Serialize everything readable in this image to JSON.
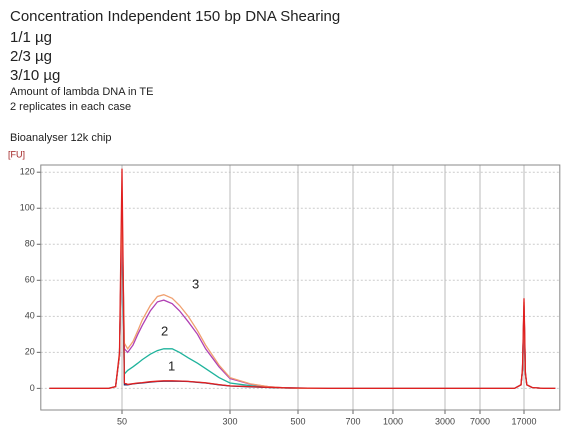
{
  "chart_data": {
    "type": "line",
    "title": "Concentration Independent 150 bp DNA Shearing",
    "subtitles": [
      "1/1 µg",
      "2/3 µg",
      "3/10 µg"
    ],
    "notes": [
      "Amount of lambda DNA in TE",
      "2 replicates in each case"
    ],
    "chip": "Bioanalyser 12k chip",
    "y_label": "[FU]",
    "annotations": [
      "3",
      "2",
      "1"
    ],
    "x": [
      15,
      30,
      40,
      45,
      48,
      50,
      52,
      55,
      60,
      65,
      70,
      80,
      90,
      100,
      115,
      130,
      150,
      175,
      200,
      250,
      300,
      350,
      400,
      450,
      500,
      600,
      800,
      1000,
      2000,
      5000,
      10000,
      14000,
      16000,
      16500,
      17000,
      17500,
      18000,
      20000,
      25000,
      32000
    ],
    "series": [
      {
        "color": "#2b2f6e",
        "values": [
          0,
          0,
          0,
          1,
          18,
          98,
          2,
          2,
          2.5,
          2.8,
          3,
          3.5,
          3.8,
          4,
          4,
          4,
          3.8,
          3.4,
          3,
          2,
          1.3,
          0.9,
          0.5,
          0.3,
          0.2,
          0,
          0,
          0,
          0,
          0,
          0,
          0,
          2,
          10,
          44,
          8,
          2,
          0.5,
          0,
          0
        ]
      },
      {
        "color": "#1fb39c",
        "values": [
          0,
          0,
          0,
          1,
          18,
          92,
          8,
          10,
          12,
          14,
          16,
          19,
          21,
          22,
          22,
          20,
          17,
          14,
          11,
          6,
          3,
          1.5,
          0.6,
          0.2,
          0,
          0,
          0,
          0,
          0,
          0,
          0,
          0,
          2,
          10,
          45,
          8,
          2,
          0.5,
          0,
          0
        ]
      },
      {
        "color": "#b040b4",
        "values": [
          0,
          0,
          0,
          1,
          18,
          95,
          22,
          20,
          24,
          30,
          35,
          43,
          48,
          49,
          47,
          43,
          37,
          30,
          22,
          12,
          5.5,
          2.3,
          1,
          0.3,
          0,
          0,
          0,
          0,
          0,
          0,
          0,
          0,
          2,
          10,
          46,
          8,
          2,
          0.5,
          0,
          0
        ]
      },
      {
        "color": "#f0a070",
        "values": [
          0,
          0,
          0,
          1,
          18,
          100,
          25,
          22,
          26,
          32,
          38,
          46,
          51,
          52,
          50,
          46,
          40,
          32,
          24,
          13,
          6,
          2.5,
          1,
          0.3,
          0,
          0,
          0,
          0,
          0,
          0,
          0,
          0,
          2,
          10,
          48,
          8,
          2,
          0.5,
          0,
          0
        ]
      },
      {
        "color": "#e02020",
        "values": [
          0,
          0,
          0,
          1,
          20,
          122,
          3,
          2.2,
          2.6,
          3,
          3.2,
          3.7,
          4,
          4.2,
          4.2,
          4.1,
          3.9,
          3.5,
          3.1,
          2.1,
          1.4,
          1,
          0.6,
          0.3,
          0.2,
          0,
          0,
          0,
          0,
          0,
          0,
          0,
          2,
          11,
          50,
          9,
          2,
          0.5,
          0,
          0
        ]
      }
    ],
    "xlim": [
      13,
      35000
    ],
    "xticks": [
      50,
      300,
      500,
      700,
      1000,
      3000,
      7000,
      17000
    ],
    "ylim": [
      -12,
      124
    ],
    "yticks": [
      0,
      20,
      40,
      60,
      80,
      100,
      120
    ],
    "grid": true
  }
}
